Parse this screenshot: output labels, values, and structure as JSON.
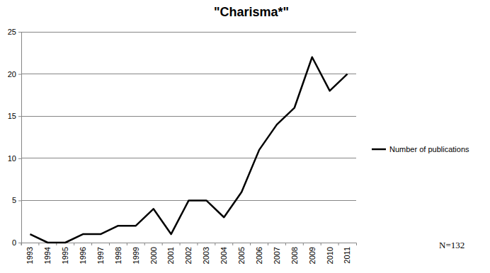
{
  "chart_data": {
    "type": "line",
    "title": "\"Charisma*\"",
    "categories": [
      "1993",
      "1994",
      "1995",
      "1996",
      "1997",
      "1998",
      "1999",
      "2000",
      "2001",
      "2002",
      "2003",
      "2004",
      "2005",
      "2006",
      "2007",
      "2008",
      "2009",
      "2010",
      "2011"
    ],
    "series": [
      {
        "name": "Number of publications",
        "color": "#000000",
        "values": [
          1,
          0,
          0,
          1,
          1,
          2,
          2,
          4,
          1,
          5,
          5,
          3,
          6,
          11,
          14,
          16,
          22,
          18,
          20
        ]
      }
    ],
    "ylim": [
      0,
      25
    ],
    "yticks": [
      0,
      5,
      10,
      15,
      20,
      25
    ],
    "grid": true,
    "legend": "right",
    "annotation": "N=132"
  }
}
